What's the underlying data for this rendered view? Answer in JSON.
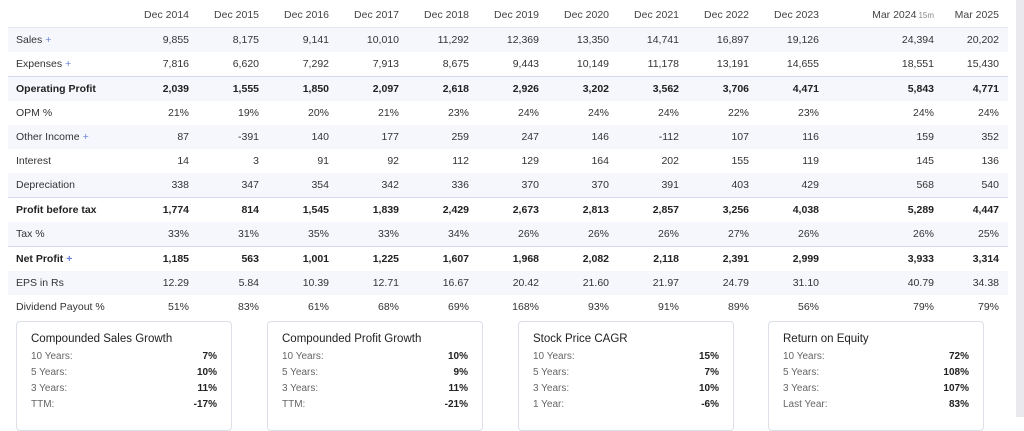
{
  "table": {
    "columns": [
      "Dec 2014",
      "Dec 2015",
      "Dec 2016",
      "Dec 2017",
      "Dec 2018",
      "Dec 2019",
      "Dec 2020",
      "Dec 2021",
      "Dec 2022",
      "Dec 2023",
      "Mar 2024",
      "Mar 2025"
    ],
    "col_note": "15m",
    "rows": [
      {
        "label": "Sales",
        "plus": "+",
        "values": [
          "9,855",
          "8,175",
          "9,141",
          "10,010",
          "11,292",
          "12,369",
          "13,350",
          "14,741",
          "16,897",
          "19,126",
          "24,394",
          "20,202"
        ]
      },
      {
        "label": "Expenses",
        "plus": "+",
        "values": [
          "7,816",
          "6,620",
          "7,292",
          "7,913",
          "8,675",
          "9,443",
          "10,149",
          "11,178",
          "13,191",
          "14,655",
          "18,551",
          "15,430"
        ]
      },
      {
        "label": "Operating Profit",
        "plus": "",
        "values": [
          "2,039",
          "1,555",
          "1,850",
          "2,097",
          "2,618",
          "2,926",
          "3,202",
          "3,562",
          "3,706",
          "4,471",
          "5,843",
          "4,771"
        ]
      },
      {
        "label": "OPM %",
        "plus": "",
        "values": [
          "21%",
          "19%",
          "20%",
          "21%",
          "23%",
          "24%",
          "24%",
          "24%",
          "22%",
          "23%",
          "24%",
          "24%"
        ]
      },
      {
        "label": "Other Income",
        "plus": "+",
        "values": [
          "87",
          "-391",
          "140",
          "177",
          "259",
          "247",
          "146",
          "-112",
          "107",
          "116",
          "159",
          "352"
        ]
      },
      {
        "label": "Interest",
        "plus": "",
        "values": [
          "14",
          "3",
          "91",
          "92",
          "112",
          "129",
          "164",
          "202",
          "155",
          "119",
          "145",
          "136"
        ]
      },
      {
        "label": "Depreciation",
        "plus": "",
        "values": [
          "338",
          "347",
          "354",
          "342",
          "336",
          "370",
          "370",
          "391",
          "403",
          "429",
          "568",
          "540"
        ]
      },
      {
        "label": "Profit before tax",
        "plus": "",
        "values": [
          "1,774",
          "814",
          "1,545",
          "1,839",
          "2,429",
          "2,673",
          "2,813",
          "2,857",
          "3,256",
          "4,038",
          "5,289",
          "4,447"
        ]
      },
      {
        "label": "Tax %",
        "plus": "",
        "values": [
          "33%",
          "31%",
          "35%",
          "33%",
          "34%",
          "26%",
          "26%",
          "26%",
          "27%",
          "26%",
          "26%",
          "25%"
        ]
      },
      {
        "label": "Net Profit",
        "plus": "+",
        "values": [
          "1,185",
          "563",
          "1,001",
          "1,225",
          "1,607",
          "1,968",
          "2,082",
          "2,118",
          "2,391",
          "2,999",
          "3,933",
          "3,314"
        ]
      },
      {
        "label": "EPS in Rs",
        "plus": "",
        "values": [
          "12.29",
          "5.84",
          "10.39",
          "12.71",
          "16.67",
          "20.42",
          "21.60",
          "21.97",
          "24.79",
          "31.10",
          "40.79",
          "34.38"
        ]
      },
      {
        "label": "Dividend Payout %",
        "plus": "",
        "values": [
          "51%",
          "83%",
          "61%",
          "68%",
          "69%",
          "168%",
          "93%",
          "91%",
          "89%",
          "56%",
          "79%",
          "79%"
        ]
      }
    ]
  },
  "cards": [
    {
      "title": "Compounded Sales Growth",
      "rows": [
        [
          "10 Years:",
          "7%"
        ],
        [
          "5 Years:",
          "10%"
        ],
        [
          "3 Years:",
          "11%"
        ],
        [
          "TTM:",
          "-17%"
        ]
      ]
    },
    {
      "title": "Compounded Profit Growth",
      "rows": [
        [
          "10 Years:",
          "10%"
        ],
        [
          "5 Years:",
          "9%"
        ],
        [
          "3 Years:",
          "11%"
        ],
        [
          "TTM:",
          "-21%"
        ]
      ]
    },
    {
      "title": "Stock Price CAGR",
      "rows": [
        [
          "10 Years:",
          "15%"
        ],
        [
          "5 Years:",
          "7%"
        ],
        [
          "3 Years:",
          "10%"
        ],
        [
          "1 Year:",
          "-6%"
        ]
      ]
    },
    {
      "title": "Return on Equity",
      "rows": [
        [
          "10 Years:",
          "72%"
        ],
        [
          "5 Years:",
          "108%"
        ],
        [
          "3 Years:",
          "107%"
        ],
        [
          "Last Year:",
          "83%"
        ]
      ]
    }
  ]
}
